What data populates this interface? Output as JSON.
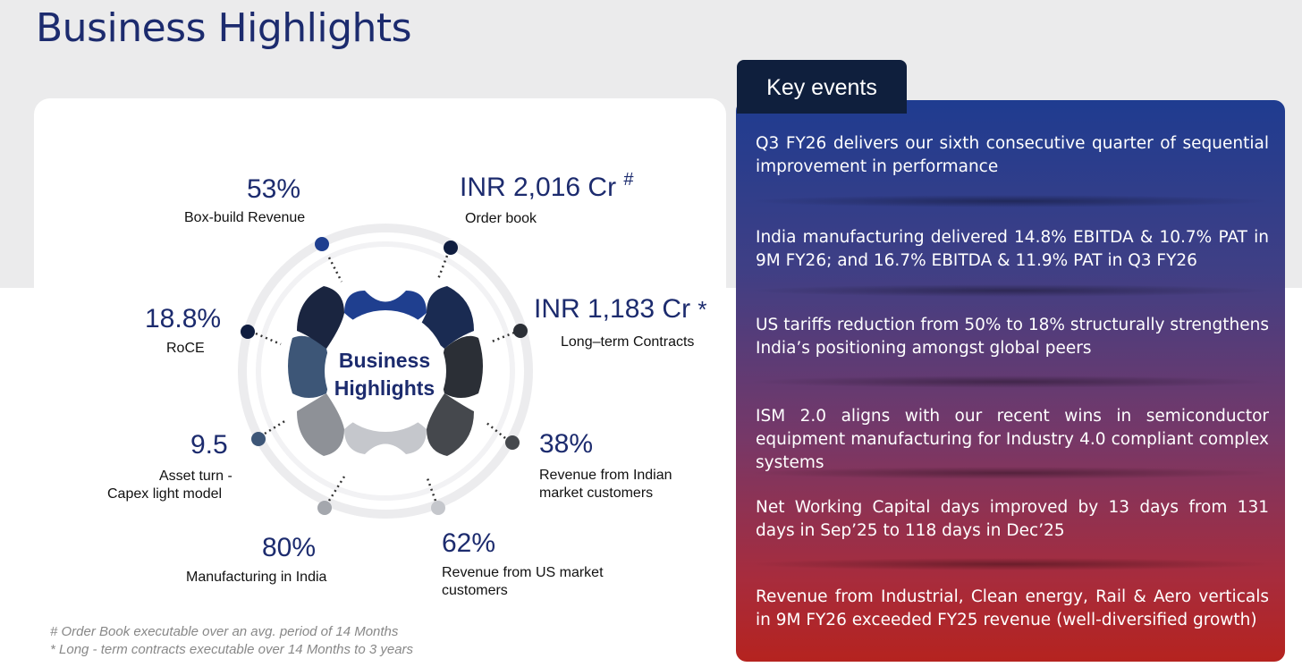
{
  "page": {
    "title": "Business Highlights"
  },
  "hub": {
    "center_line1": "Business",
    "center_line2": "Highlights"
  },
  "metrics": [
    {
      "value": "53%",
      "label": "Box-build Revenue"
    },
    {
      "value": "INR 2,016 Cr",
      "mark": "#",
      "label": "Order book"
    },
    {
      "value": "INR 1,183 Cr",
      "mark": "*",
      "label": "Long–term Contracts"
    },
    {
      "value": "38%",
      "label1": "Revenue from Indian",
      "label2": "market customers"
    },
    {
      "value": "62%",
      "label1": "Revenue from US market",
      "label2": "customers"
    },
    {
      "value": "80%",
      "label": "Manufacturing in India"
    },
    {
      "value": "9.5",
      "label1": "Asset turn -",
      "label2": "Capex light model"
    },
    {
      "value": "18.8%",
      "label": "RoCE"
    }
  ],
  "footnotes": [
    "# Order Book executable over an avg. period of 14 Months",
    "*  Long - term contracts executable over 14 Months to 3 years"
  ],
  "key_events": {
    "tab_label": "Key events",
    "items": [
      "Q3 FY26 delivers our sixth consecutive quarter of sequential improvement in performance",
      "India manufacturing delivered 14.8% EBITDA & 10.7% PAT in 9M FY26; and 16.7% EBITDA & 11.9% PAT in Q3 FY26",
      "US tariffs reduction from 50% to 18% structurally strengthens India’s positioning amongst global peers",
      "ISM 2.0 aligns with our recent wins in semiconductor equipment manufacturing for Industry 4.0 compliant complex systems",
      "Net Working Capital days improved by 13 days from 131 days in Sep’25 to 118 days in Dec’25",
      "Revenue from Industrial, Clean energy, Rail & Aero verticals in 9M FY26 exceeded FY25 revenue (well-diversified growth)"
    ]
  },
  "colors": {
    "title": "#1c2b6e",
    "petal_1": "#1f3f8f",
    "petal_2": "#1a2b52",
    "petal_3": "#2b2f36",
    "petal_4": "#45484d",
    "petal_5": "#8e9197",
    "petal_6": "#c5c7cc",
    "petal_7": "#8b94a8",
    "petal_8": "#3d5677"
  }
}
